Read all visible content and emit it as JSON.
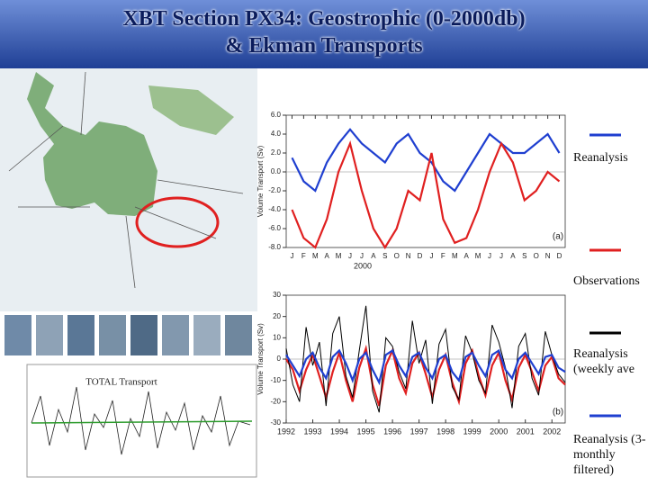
{
  "slide": {
    "title": [
      "XBT Section PX34: Geostrophic (0-2000db)",
      "& Ekman Transports"
    ],
    "inset_label": "TOTAL Transport"
  },
  "chart_data": [
    {
      "type": "line",
      "y_label": "Volume Transport (Sv)",
      "x_label": "2000",
      "panel": "(a)",
      "categories": [
        "J",
        "F",
        "M",
        "A",
        "M",
        "J",
        "J",
        "A",
        "S",
        "O",
        "N",
        "D",
        "J",
        "F",
        "M",
        "A",
        "M",
        "J",
        "J",
        "A",
        "S",
        "O",
        "N",
        "D"
      ],
      "ylim": [
        -8,
        6
      ],
      "yticks": [
        {
          "value": -8,
          "label": "-8.0"
        },
        {
          "value": -6,
          "label": "-6.0"
        },
        {
          "value": -4,
          "label": "-4.0"
        },
        {
          "value": -2,
          "label": "-2.0"
        },
        {
          "value": 0,
          "label": "0.0"
        },
        {
          "value": 2,
          "label": "2.0"
        },
        {
          "value": 4,
          "label": "4.0"
        },
        {
          "value": 6,
          "label": "6.0"
        }
      ],
      "series": [
        {
          "name": "Reanalysis",
          "color": "#1f3fd0",
          "values": [
            1.5,
            -1,
            -2,
            1,
            3,
            4.5,
            3,
            2,
            1,
            3,
            4,
            2,
            1,
            -1,
            -2,
            0,
            2,
            4,
            3,
            2,
            2,
            3,
            4,
            2
          ]
        },
        {
          "name": "Observations",
          "color": "#e02020",
          "values": [
            -4,
            -7,
            -8,
            -5,
            0,
            3,
            -2,
            -6,
            -8,
            -6,
            -2,
            -3,
            2,
            -5,
            -7.5,
            -7,
            -4,
            0,
            3,
            1,
            -3,
            -2,
            0,
            -1
          ]
        }
      ]
    },
    {
      "type": "line",
      "y_label": "Volume Transport (Sv)",
      "panel": "(b)",
      "x": [
        1992,
        1992.25,
        1992.5,
        1992.75,
        1993,
        1993.25,
        1993.5,
        1993.75,
        1994,
        1994.25,
        1994.5,
        1994.75,
        1995,
        1995.25,
        1995.5,
        1995.75,
        1996,
        1996.25,
        1996.5,
        1996.75,
        1997,
        1997.25,
        1997.5,
        1997.75,
        1998,
        1998.25,
        1998.5,
        1998.75,
        1999,
        1999.25,
        1999.5,
        1999.75,
        2000,
        2000.25,
        2000.5,
        2000.75,
        2001,
        2001.25,
        2001.5,
        2001.75,
        2002,
        2002.25,
        2002.5
      ],
      "xlim": [
        1992,
        2002.5
      ],
      "xticks": [
        1992,
        1993,
        1994,
        1995,
        1996,
        1997,
        1998,
        1999,
        2000,
        2001,
        2002
      ],
      "ylim": [
        -30,
        30
      ],
      "yticks": [
        -30,
        -20,
        -10,
        0,
        10,
        20,
        30
      ],
      "series": [
        {
          "color": "#e02020",
          "values": [
            0,
            -5,
            -15,
            -5,
            2,
            -8,
            -18,
            -6,
            3,
            -10,
            -20,
            -4,
            5,
            -12,
            -22,
            -3,
            4,
            -9,
            -16,
            -2,
            3,
            -7,
            -18,
            -5,
            2,
            -11,
            -20,
            -2,
            4,
            -8,
            -17,
            -3,
            3,
            -10,
            -19,
            -4,
            2,
            -6,
            -15,
            -3,
            1,
            -9,
            -12
          ]
        },
        {
          "name": "Reanalysis (weekly ave",
          "color": "#000000",
          "values": [
            5,
            -12,
            -20,
            15,
            -3,
            8,
            -22,
            12,
            20,
            -8,
            -18,
            4,
            25,
            -15,
            -25,
            10,
            6,
            -6,
            -14,
            18,
            -2,
            9,
            -21,
            7,
            14,
            -13,
            -19,
            11,
            3,
            -10,
            -16,
            16,
            8,
            -4,
            -23,
            6,
            12,
            -9,
            -17,
            13,
            2,
            -7,
            -11
          ]
        },
        {
          "name": "Reanalysis (3-monthly filtered)",
          "color": "#1f3fd0",
          "values": [
            2,
            -3,
            -8,
            0,
            3,
            -4,
            -9,
            1,
            4,
            -2,
            -10,
            0,
            3,
            -5,
            -11,
            2,
            4,
            -3,
            -8,
            1,
            3,
            -4,
            -9,
            0,
            2,
            -6,
            -10,
            1,
            3,
            -3,
            -8,
            2,
            4,
            -5,
            -9,
            0,
            3,
            -2,
            -7,
            1,
            2,
            -4,
            -6
          ]
        }
      ]
    }
  ]
}
